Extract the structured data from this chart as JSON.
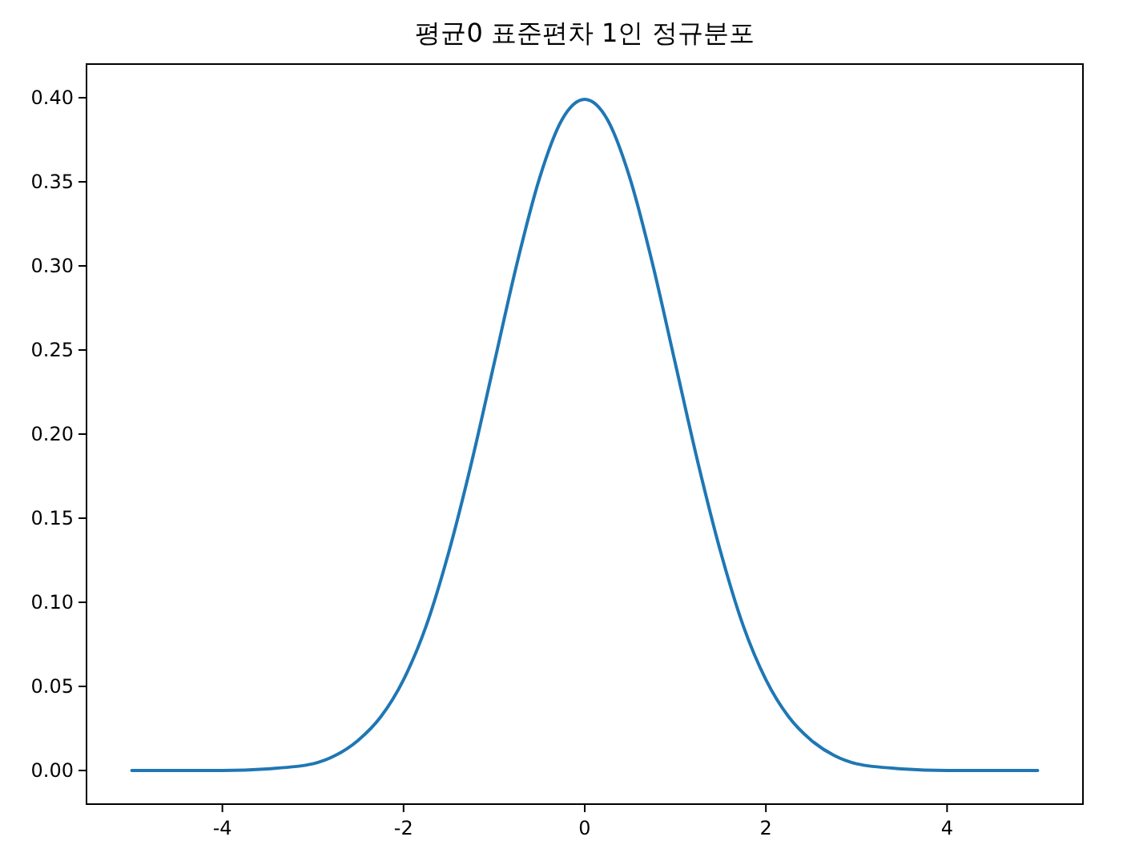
{
  "chart_data": {
    "type": "line",
    "title": "평균0 표준편차 1인 정규분포",
    "x": [
      -5,
      -4.5,
      -4,
      -3.5,
      -3,
      -2.75,
      -2.5,
      -2.25,
      -2,
      -1.75,
      -1.5,
      -1.25,
      -1,
      -0.75,
      -0.5,
      -0.25,
      0,
      0.25,
      0.5,
      0.75,
      1,
      1.25,
      1.5,
      1.75,
      2,
      2.25,
      2.5,
      2.75,
      3,
      3.5,
      4,
      4.5,
      5
    ],
    "series": [
      {
        "color": "#1f77b4",
        "values": [
          0,
          0,
          0,
          0.001,
          0.004,
          0.009,
          0.018,
          0.032,
          0.054,
          0.086,
          0.13,
          0.183,
          0.242,
          0.301,
          0.352,
          0.387,
          0.399,
          0.387,
          0.352,
          0.301,
          0.242,
          0.183,
          0.13,
          0.086,
          0.054,
          0.032,
          0.018,
          0.009,
          0.004,
          0.001,
          0,
          0,
          0
        ]
      }
    ],
    "xlim": [
      -5.5,
      5.5
    ],
    "ylim": [
      -0.02,
      0.42
    ],
    "xticks": [
      -4,
      -2,
      0,
      2,
      4
    ],
    "yticks": [
      {
        "value": 0,
        "label": "0.00"
      },
      {
        "value": 0.05,
        "label": "0.05"
      },
      {
        "value": 0.1,
        "label": "0.10"
      },
      {
        "value": 0.15,
        "label": "0.15"
      },
      {
        "value": 0.2,
        "label": "0.20"
      },
      {
        "value": 0.25,
        "label": "0.25"
      },
      {
        "value": 0.3,
        "label": "0.30"
      },
      {
        "value": 0.35,
        "label": "0.35"
      },
      {
        "value": 0.4,
        "label": "0.40"
      }
    ],
    "grid": false,
    "line_style": "solid"
  }
}
